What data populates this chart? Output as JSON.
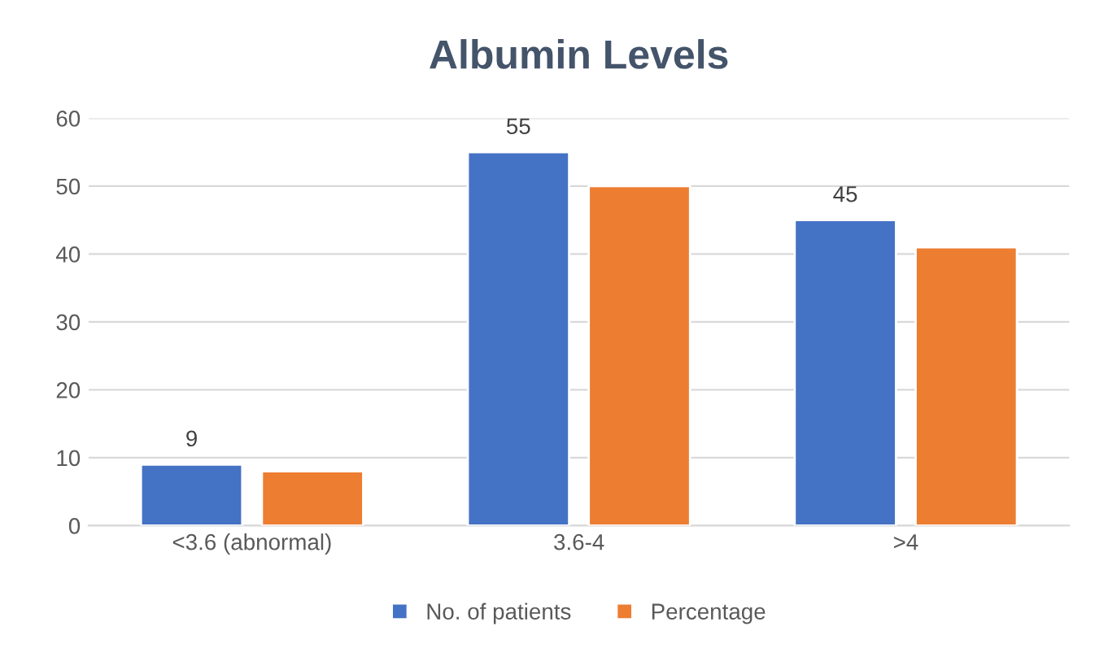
{
  "chart_data": {
    "type": "bar",
    "title": "Albumin Levels",
    "categories": [
      "<3.6 (abnormal)",
      "3.6-4",
      ">4"
    ],
    "series": [
      {
        "name": "No. of patients",
        "color": "#4472c4",
        "values": [
          9,
          55,
          45
        ],
        "value_labels": [
          "9",
          "55",
          "45"
        ]
      },
      {
        "name": "Percentage",
        "color": "#ed7d31",
        "values": [
          8,
          50,
          41
        ]
      }
    ],
    "ylim": [
      0,
      60
    ],
    "yticks": [
      0,
      10,
      20,
      30,
      40,
      50,
      60
    ],
    "grid": "y",
    "legend": "bottom"
  }
}
